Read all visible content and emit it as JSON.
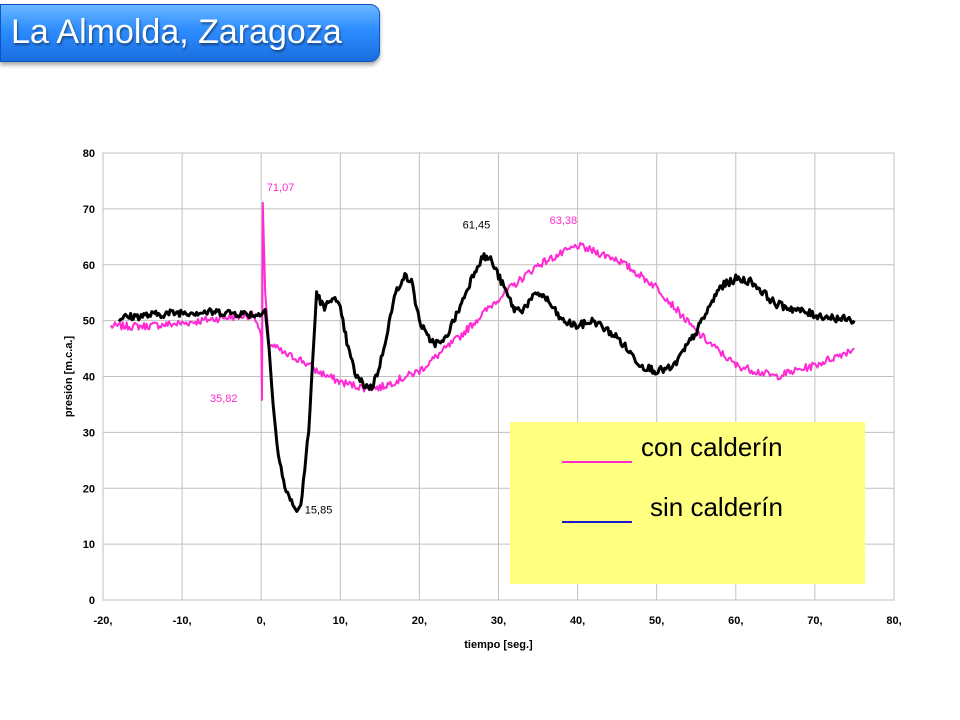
{
  "slide": {
    "title": "La Almolda, Zaragoza"
  },
  "chart_data": {
    "type": "line",
    "title": "",
    "xlabel": "tiempo [seg.]",
    "ylabel": "presión [m.c.a.]",
    "xlim": [
      -20,
      80
    ],
    "ylim": [
      0,
      80
    ],
    "x_ticks": [
      -20,
      -10,
      0,
      10,
      20,
      30,
      40,
      50,
      60,
      70,
      80
    ],
    "x_tick_labels": [
      "-20,",
      "-10,",
      "0,",
      "10,",
      "20,",
      "30,",
      "40,",
      "50,",
      "60,",
      "70,",
      "80,"
    ],
    "y_ticks": [
      0,
      10,
      20,
      30,
      40,
      50,
      60,
      70,
      80
    ],
    "y_tick_labels": [
      "0",
      "10",
      "20",
      "30",
      "40",
      "50",
      "60",
      "70",
      "80"
    ],
    "grid": true,
    "legend_position": "bottom-right",
    "series": [
      {
        "name": "con calderín",
        "color": "#ff2ad4",
        "x": [
          -19,
          -15,
          -10,
          -5,
          -1,
          0,
          0.1,
          0.2,
          0.5,
          1,
          2,
          3,
          5,
          7,
          10,
          13,
          15,
          20,
          25,
          30,
          35,
          40,
          45,
          50,
          55,
          60,
          65,
          70,
          75
        ],
        "y": [
          49,
          49,
          49.5,
          50.5,
          51,
          47,
          35.82,
          71.07,
          55,
          46,
          45,
          44,
          43,
          41,
          39,
          38,
          38,
          41,
          47,
          54,
          60,
          63.38,
          61,
          56,
          48,
          42,
          40,
          42,
          45
        ]
      },
      {
        "name": "sin calderín",
        "color": "#000000",
        "x": [
          -18,
          -10,
          -5,
          0,
          0.5,
          1,
          1.5,
          2,
          3,
          4,
          4.5,
          5,
          6,
          7,
          8,
          9,
          10,
          11,
          12,
          13,
          14,
          15,
          17,
          18,
          19,
          20,
          21,
          22,
          23,
          25,
          27,
          28,
          29,
          30,
          32,
          33,
          35,
          36,
          38,
          40,
          42,
          45,
          48,
          50,
          52,
          55,
          58,
          60,
          62,
          65,
          70,
          75
        ],
        "y": [
          50.5,
          51.5,
          51.5,
          51,
          52,
          45,
          35,
          28,
          20,
          17,
          15.85,
          17,
          30,
          55,
          52,
          54.5,
          52,
          45,
          40,
          38.5,
          38,
          42,
          55,
          58,
          57,
          50,
          47,
          46,
          46,
          52,
          59,
          61.45,
          61,
          58,
          52,
          52,
          55,
          54,
          50,
          49,
          50,
          47,
          42,
          41,
          41.5,
          48,
          56,
          57.5,
          57,
          53,
          51,
          50
        ]
      }
    ],
    "annotations": [
      {
        "text": "71,07",
        "x": 0.2,
        "y": 71.07,
        "color": "#ff2ad4"
      },
      {
        "text": "35,82",
        "x": 0.1,
        "y": 35.82,
        "color": "#ff2ad4"
      },
      {
        "text": "15,85",
        "x": 4.5,
        "y": 15.85,
        "color": "#000000"
      },
      {
        "text": "61,45",
        "x": 28,
        "y": 61.45,
        "color": "#000000"
      },
      {
        "text": "63,38",
        "x": 40,
        "y": 63.38,
        "color": "#ff2ad4"
      }
    ],
    "legend": {
      "background": "#ffff80",
      "entries": [
        {
          "text": "con calderín",
          "line_color": "#ff2ad4"
        },
        {
          "text": "sin calderín",
          "line_color": "#1a1acc"
        }
      ]
    }
  }
}
